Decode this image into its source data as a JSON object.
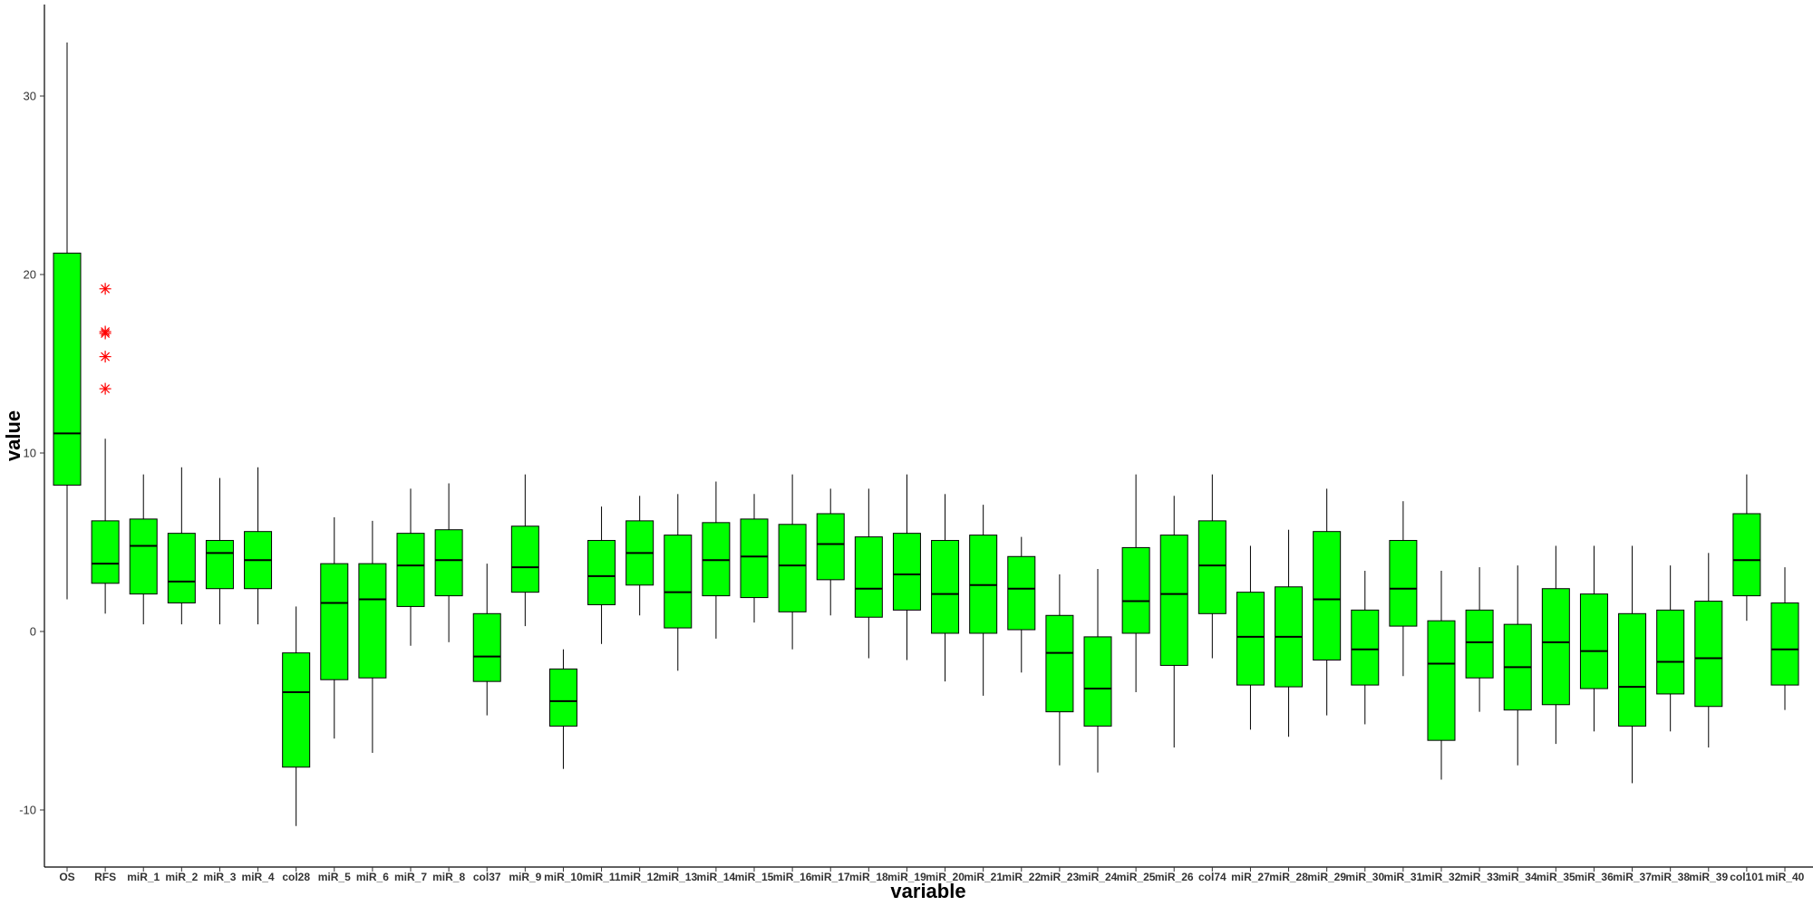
{
  "chart_data": {
    "type": "boxplot",
    "xlabel": "variable",
    "ylabel": "value",
    "ylim": [
      -13,
      35
    ],
    "yticks": [
      -10,
      0,
      10,
      20,
      30
    ],
    "ytick_labels": [
      "-10",
      "0",
      "10",
      "20",
      "30"
    ],
    "grid": false,
    "colors": {
      "box_fill": "#00ff00",
      "box_stroke": "#000000",
      "outlier": "#ff0000"
    },
    "categories": [
      "OS",
      "RFS",
      "miR_1",
      "miR_2",
      "miR_3",
      "miR_4",
      "col28",
      "miR_5",
      "miR_6",
      "miR_7",
      "miR_8",
      "col37",
      "miR_9",
      "miR_10",
      "miR_11",
      "miR_12",
      "miR_13",
      "miR_14",
      "miR_15",
      "miR_16",
      "miR_17",
      "miR_18",
      "miR_19",
      "miR_20",
      "miR_21",
      "miR_22",
      "miR_23",
      "miR_24",
      "miR_25",
      "miR_26",
      "col74",
      "miR_27",
      "miR_28",
      "miR_29",
      "miR_30",
      "miR_31",
      "miR_32",
      "miR_33",
      "miR_34",
      "miR_35",
      "miR_36",
      "miR_37",
      "miR_38",
      "miR_39",
      "col101",
      "miR_40"
    ],
    "boxes": [
      {
        "min": 1.8,
        "q1": 8.2,
        "median": 11.1,
        "q3": 21.2,
        "max": 33.0,
        "outliers": []
      },
      {
        "min": 1.0,
        "q1": 2.7,
        "median": 3.8,
        "q3": 6.2,
        "max": 10.8,
        "outliers": [
          19.2,
          16.8,
          16.7,
          15.4,
          13.6
        ]
      },
      {
        "min": 0.4,
        "q1": 2.1,
        "median": 4.8,
        "q3": 6.3,
        "max": 8.8,
        "outliers": []
      },
      {
        "min": 0.4,
        "q1": 1.6,
        "median": 2.8,
        "q3": 5.5,
        "max": 9.2,
        "outliers": []
      },
      {
        "min": 0.4,
        "q1": 2.4,
        "median": 4.4,
        "q3": 5.1,
        "max": 8.6,
        "outliers": []
      },
      {
        "min": 0.4,
        "q1": 2.4,
        "median": 4.0,
        "q3": 5.6,
        "max": 9.2,
        "outliers": []
      },
      {
        "min": -10.9,
        "q1": -7.6,
        "median": -3.4,
        "q3": -1.2,
        "max": 1.4,
        "outliers": []
      },
      {
        "min": -6.0,
        "q1": -2.7,
        "median": 1.6,
        "q3": 3.8,
        "max": 6.4,
        "outliers": []
      },
      {
        "min": -6.8,
        "q1": -2.6,
        "median": 1.8,
        "q3": 3.8,
        "max": 6.2,
        "outliers": []
      },
      {
        "min": -0.8,
        "q1": 1.4,
        "median": 3.7,
        "q3": 5.5,
        "max": 8.0,
        "outliers": []
      },
      {
        "min": -0.6,
        "q1": 2.0,
        "median": 4.0,
        "q3": 5.7,
        "max": 8.3,
        "outliers": []
      },
      {
        "min": -4.7,
        "q1": -2.8,
        "median": -1.4,
        "q3": 1.0,
        "max": 3.8,
        "outliers": []
      },
      {
        "min": 0.3,
        "q1": 2.2,
        "median": 3.6,
        "q3": 5.9,
        "max": 8.8,
        "outliers": []
      },
      {
        "min": -7.7,
        "q1": -5.3,
        "median": -3.9,
        "q3": -2.1,
        "max": -1.0,
        "outliers": []
      },
      {
        "min": -0.7,
        "q1": 1.5,
        "median": 3.1,
        "q3": 5.1,
        "max": 7.0,
        "outliers": []
      },
      {
        "min": 0.9,
        "q1": 2.6,
        "median": 4.4,
        "q3": 6.2,
        "max": 7.6,
        "outliers": []
      },
      {
        "min": -2.2,
        "q1": 0.2,
        "median": 2.2,
        "q3": 5.4,
        "max": 7.7,
        "outliers": []
      },
      {
        "min": -0.4,
        "q1": 2.0,
        "median": 4.0,
        "q3": 6.1,
        "max": 8.4,
        "outliers": []
      },
      {
        "min": 0.5,
        "q1": 1.9,
        "median": 4.2,
        "q3": 6.3,
        "max": 7.7,
        "outliers": []
      },
      {
        "min": -1.0,
        "q1": 1.1,
        "median": 3.7,
        "q3": 6.0,
        "max": 8.8,
        "outliers": []
      },
      {
        "min": 0.9,
        "q1": 2.9,
        "median": 4.9,
        "q3": 6.6,
        "max": 8.0,
        "outliers": []
      },
      {
        "min": -1.5,
        "q1": 0.8,
        "median": 2.4,
        "q3": 5.3,
        "max": 8.0,
        "outliers": []
      },
      {
        "min": -1.6,
        "q1": 1.2,
        "median": 3.2,
        "q3": 5.5,
        "max": 8.8,
        "outliers": []
      },
      {
        "min": -2.8,
        "q1": -0.1,
        "median": 2.1,
        "q3": 5.1,
        "max": 7.7,
        "outliers": []
      },
      {
        "min": -3.6,
        "q1": -0.1,
        "median": 2.6,
        "q3": 5.4,
        "max": 7.1,
        "outliers": []
      },
      {
        "min": -2.3,
        "q1": 0.1,
        "median": 2.4,
        "q3": 4.2,
        "max": 5.3,
        "outliers": []
      },
      {
        "min": -7.5,
        "q1": -4.5,
        "median": -1.2,
        "q3": 0.9,
        "max": 3.2,
        "outliers": []
      },
      {
        "min": -7.9,
        "q1": -5.3,
        "median": -3.2,
        "q3": -0.3,
        "max": 3.5,
        "outliers": []
      },
      {
        "min": -3.4,
        "q1": -0.1,
        "median": 1.7,
        "q3": 4.7,
        "max": 8.8,
        "outliers": []
      },
      {
        "min": -6.5,
        "q1": -1.9,
        "median": 2.1,
        "q3": 5.4,
        "max": 7.6,
        "outliers": []
      },
      {
        "min": -1.5,
        "q1": 1.0,
        "median": 3.7,
        "q3": 6.2,
        "max": 8.8,
        "outliers": []
      },
      {
        "min": -5.5,
        "q1": -3.0,
        "median": -0.3,
        "q3": 2.2,
        "max": 4.8,
        "outliers": []
      },
      {
        "min": -5.9,
        "q1": -3.1,
        "median": -0.3,
        "q3": 2.5,
        "max": 5.7,
        "outliers": []
      },
      {
        "min": -4.7,
        "q1": -1.6,
        "median": 1.8,
        "q3": 5.6,
        "max": 8.0,
        "outliers": []
      },
      {
        "min": -5.2,
        "q1": -3.0,
        "median": -1.0,
        "q3": 1.2,
        "max": 3.4,
        "outliers": []
      },
      {
        "min": -2.5,
        "q1": 0.3,
        "median": 2.4,
        "q3": 5.1,
        "max": 7.3,
        "outliers": []
      },
      {
        "min": -8.3,
        "q1": -6.1,
        "median": -1.8,
        "q3": 0.6,
        "max": 3.4,
        "outliers": []
      },
      {
        "min": -4.5,
        "q1": -2.6,
        "median": -0.6,
        "q3": 1.2,
        "max": 3.6,
        "outliers": []
      },
      {
        "min": -7.5,
        "q1": -4.4,
        "median": -2.0,
        "q3": 0.4,
        "max": 3.7,
        "outliers": []
      },
      {
        "min": -6.3,
        "q1": -4.1,
        "median": -0.6,
        "q3": 2.4,
        "max": 4.8,
        "outliers": []
      },
      {
        "min": -5.6,
        "q1": -3.2,
        "median": -1.1,
        "q3": 2.1,
        "max": 4.8,
        "outliers": []
      },
      {
        "min": -8.5,
        "q1": -5.3,
        "median": -3.1,
        "q3": 1.0,
        "max": 4.8,
        "outliers": []
      },
      {
        "min": -5.6,
        "q1": -3.5,
        "median": -1.7,
        "q3": 1.2,
        "max": 3.7,
        "outliers": []
      },
      {
        "min": -6.5,
        "q1": -4.2,
        "median": -1.5,
        "q3": 1.7,
        "max": 4.4,
        "outliers": []
      },
      {
        "min": 0.6,
        "q1": 2.0,
        "median": 4.0,
        "q3": 6.6,
        "max": 8.8,
        "outliers": []
      },
      {
        "min": -4.4,
        "q1": -3.0,
        "median": -1.0,
        "q3": 1.6,
        "max": 3.6,
        "outliers": []
      }
    ]
  }
}
